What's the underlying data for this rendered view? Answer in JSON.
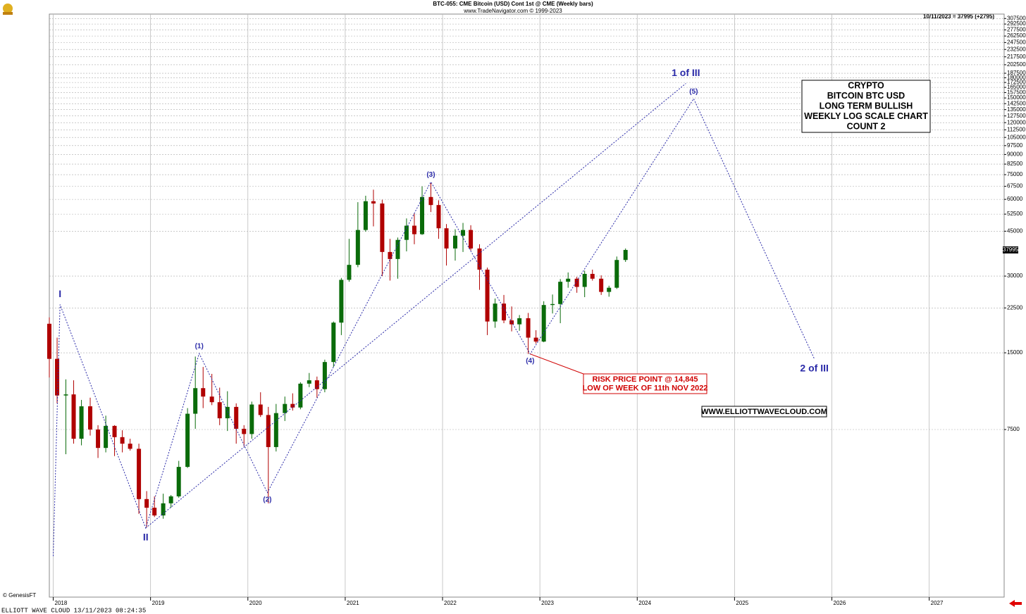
{
  "chart_data": {
    "type": "candlestick",
    "title": "BTC-055:  CME Bitcoin (USD) Cont 1st @ CME  (Weekly bars)",
    "subtitle": "www.TradeNavigator.com © 1999-2023",
    "last_quote": "10/11/2023 = 37995 (+2795)",
    "last_price": 37995,
    "log_scale": true,
    "grid": true,
    "up_color": "#0a6b0a",
    "down_color": "#b00000",
    "wave_color": "#2a2aa8",
    "note_color": "#d00000",
    "xlim": [
      2017.96,
      2027.77
    ],
    "xticks": [
      2018,
      2019,
      2020,
      2021,
      2022,
      2023,
      2024,
      2025,
      2026,
      2027
    ],
    "ylim": [
      1650,
      320000
    ],
    "yticks": [
      307500,
      292500,
      277500,
      262500,
      247500,
      232500,
      217500,
      202500,
      187500,
      180000,
      172500,
      165000,
      157500,
      150000,
      142500,
      135000,
      127500,
      120000,
      112500,
      105000,
      97500,
      90000,
      82500,
      75000,
      67500,
      60000,
      52500,
      45000,
      30000,
      22500,
      15000,
      7500
    ],
    "x": [
      2017.96,
      2018.04,
      2018.13,
      2018.21,
      2018.29,
      2018.38,
      2018.46,
      2018.54,
      2018.63,
      2018.71,
      2018.79,
      2018.88,
      2018.96,
      2019.04,
      2019.13,
      2019.21,
      2019.29,
      2019.38,
      2019.46,
      2019.54,
      2019.63,
      2019.71,
      2019.79,
      2019.88,
      2019.96,
      2020.04,
      2020.13,
      2020.21,
      2020.29,
      2020.38,
      2020.46,
      2020.54,
      2020.63,
      2020.71,
      2020.79,
      2020.88,
      2020.96,
      2021.04,
      2021.13,
      2021.21,
      2021.29,
      2021.38,
      2021.46,
      2021.54,
      2021.63,
      2021.71,
      2021.79,
      2021.88,
      2021.96,
      2022.04,
      2022.13,
      2022.21,
      2022.29,
      2022.38,
      2022.46,
      2022.54,
      2022.63,
      2022.71,
      2022.79,
      2022.88,
      2022.96,
      2023.04,
      2023.13,
      2023.21,
      2023.29,
      2023.38,
      2023.46,
      2023.54,
      2023.63,
      2023.71,
      2023.79,
      2023.88
    ],
    "open": [
      19500,
      14200,
      10200,
      10300,
      6900,
      9250,
      7500,
      6350,
      7750,
      7000,
      6600,
      6300,
      4000,
      3700,
      3450,
      3850,
      4100,
      5350,
      8650,
      10900,
      10100,
      9600,
      8300,
      9200,
      7550,
      7200,
      9400,
      8550,
      6400,
      8700,
      9450,
      9150,
      11350,
      11700,
      10800,
      13800,
      19700,
      29000,
      33200,
      45500,
      59000,
      57800,
      37300,
      35000,
      41600,
      47300,
      43800,
      61300,
      57000,
      46200,
      38500,
      43200,
      45500,
      38500,
      31800,
      19900,
      23400,
      20100,
      19400,
      20500,
      17200,
      16600,
      23100,
      23300,
      28500,
      29300,
      27200,
      30600,
      29300,
      26000,
      27000,
      34700
    ],
    "high": [
      20650,
      17200,
      11800,
      11700,
      9800,
      10000,
      7800,
      8500,
      7800,
      7450,
      6900,
      6600,
      4300,
      4100,
      4200,
      4150,
      5650,
      9100,
      14500,
      13200,
      12400,
      10950,
      10600,
      9500,
      7800,
      9650,
      10500,
      9200,
      9450,
      10100,
      10400,
      11500,
      12500,
      12100,
      14100,
      19900,
      29500,
      42000,
      58500,
      62000,
      65500,
      59800,
      42000,
      42500,
      50500,
      52900,
      67500,
      69500,
      59500,
      48000,
      45800,
      48500,
      47500,
      40000,
      32400,
      24500,
      25300,
      22800,
      21100,
      21500,
      18400,
      23900,
      25400,
      29200,
      31000,
      29800,
      31500,
      31800,
      30200,
      27500,
      35800,
      38500
    ],
    "low": [
      12000,
      9500,
      6000,
      6600,
      6500,
      7100,
      5800,
      6100,
      5900,
      6100,
      6200,
      3500,
      3100,
      3400,
      3350,
      3700,
      4050,
      5300,
      7550,
      9100,
      9350,
      7800,
      7400,
      6600,
      6450,
      6900,
      8400,
      3850,
      6150,
      8100,
      8900,
      9000,
      11000,
      10000,
      10500,
      13200,
      17600,
      28500,
      32500,
      44800,
      47000,
      30000,
      28800,
      29300,
      37500,
      40000,
      43500,
      53500,
      42000,
      33000,
      34500,
      37300,
      37800,
      26500,
      17600,
      18800,
      19600,
      18200,
      18300,
      14845,
      16300,
      16500,
      21400,
      19600,
      27000,
      25800,
      24800,
      28800,
      25300,
      24900,
      26700,
      34100
    ],
    "close": [
      14200,
      10200,
      10300,
      6900,
      9250,
      7500,
      6350,
      7750,
      7000,
      6600,
      6300,
      4000,
      3700,
      3450,
      3850,
      4100,
      5350,
      8650,
      10900,
      10100,
      9600,
      8300,
      9200,
      7550,
      7200,
      9400,
      8550,
      6400,
      8700,
      9450,
      9150,
      11350,
      11700,
      10800,
      13800,
      19700,
      29000,
      33200,
      45500,
      59000,
      57800,
      37300,
      35000,
      41600,
      47300,
      43800,
      61300,
      57000,
      46200,
      38500,
      43200,
      45500,
      38500,
      31800,
      19900,
      23400,
      20100,
      19400,
      20500,
      17200,
      16600,
      23100,
      23300,
      28500,
      29300,
      27200,
      30600,
      29300,
      26000,
      27000,
      34700,
      37995
    ],
    "wave_path": [
      {
        "x": 2018.0,
        "y": 2390
      },
      {
        "label": "I",
        "x": 2018.07,
        "y": 23200
      },
      {
        "label": "II",
        "x": 2018.95,
        "y": 3080
      },
      {
        "label": "(1)",
        "x": 2019.5,
        "y": 14900
      },
      {
        "label": "(2)",
        "x": 2020.2,
        "y": 4240
      },
      {
        "label": "(3)",
        "x": 2021.88,
        "y": 70300
      },
      {
        "label": "(4)",
        "x": 2022.9,
        "y": 14845
      },
      {
        "label": "(5)",
        "x": 2024.58,
        "y": 149000
      },
      {
        "label": "2 of III",
        "x": 2025.82,
        "y": 14200
      }
    ],
    "wave_path_2": [
      {
        "x": 2018.95,
        "y": 3080
      },
      {
        "label": "1 of III",
        "x": 2024.5,
        "y": 171000
      }
    ],
    "info_box": [
      "CRYPTO",
      "BITCOIN BTC USD",
      "LONG TERM  BULLISH",
      "WEEKLY LOG SCALE CHART",
      "COUNT 2"
    ],
    "risk_note": [
      "RISK PRICE POINT @ 14,845",
      "LOW OF WEEK OF 11th NOV 2022"
    ],
    "website": "WWW.ELLIOTTWAVECLOUD.COM",
    "copyright": "© GenesisFT",
    "footer": "ELLIOTT WAVE CLOUD   13/11/2023 08:24:35"
  }
}
